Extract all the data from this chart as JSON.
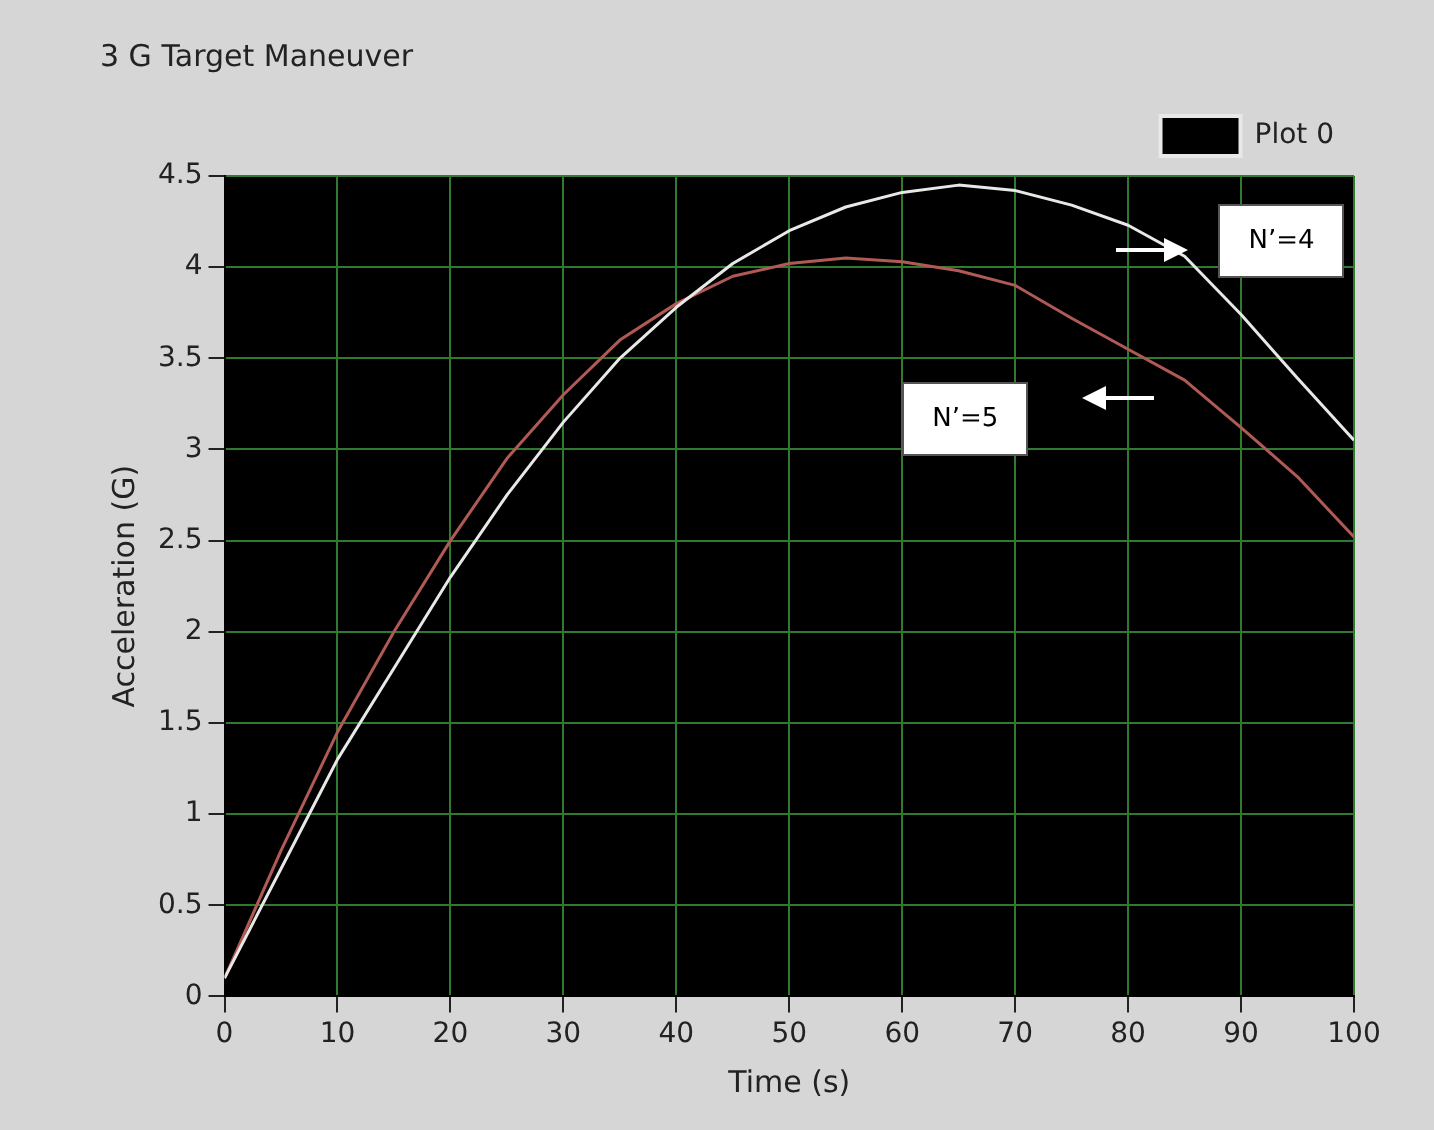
{
  "chart_data": {
    "type": "line",
    "title": "3 G Target Maneuver",
    "xlabel": "Time (s)",
    "ylabel": "Acceleration (G)",
    "x": [
      0,
      5,
      10,
      15,
      20,
      25,
      30,
      35,
      40,
      45,
      50,
      55,
      60,
      65,
      70,
      75,
      80,
      85,
      90,
      95,
      100
    ],
    "series": [
      {
        "name": "Plot 0",
        "color": "#e8e8e8",
        "values": [
          0.1,
          0.7,
          1.3,
          1.8,
          2.3,
          2.75,
          3.15,
          3.5,
          3.78,
          4.02,
          4.2,
          4.33,
          4.41,
          4.45,
          4.42,
          4.34,
          4.23,
          4.06,
          3.74,
          3.39,
          3.05
        ]
      },
      {
        "color": "#b05a55",
        "values": [
          0.1,
          0.8,
          1.45,
          2.0,
          2.5,
          2.95,
          3.3,
          3.6,
          3.8,
          3.95,
          4.02,
          4.05,
          4.03,
          3.98,
          3.9,
          3.72,
          3.55,
          3.38,
          3.12,
          2.85,
          2.52
        ]
      }
    ],
    "xlim": [
      0,
      100
    ],
    "xticks": [
      0,
      10,
      20,
      30,
      40,
      50,
      60,
      70,
      80,
      90,
      100
    ],
    "ylim": [
      0,
      4.5
    ],
    "yticks": [
      0,
      0.5,
      1,
      1.5,
      2,
      2.5,
      3,
      3.5,
      4,
      4.5
    ],
    "grid": true,
    "legend": "top right",
    "marker": "none",
    "line_style": "solid",
    "annotations": [
      "N’=4",
      "N’=5"
    ]
  }
}
